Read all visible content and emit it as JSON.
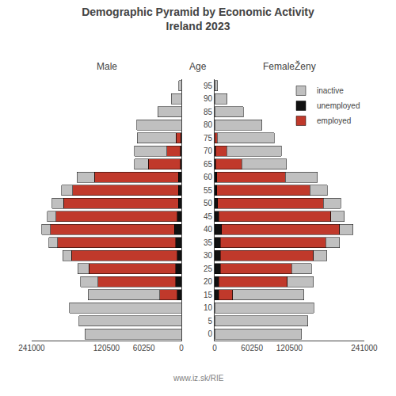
{
  "chart_data": [
    {
      "type": "bar",
      "orientation": "horizontal",
      "stacked": true,
      "title": "Demographic Pyramid by Economic Activity\nIreland 2023",
      "xlabel": "Male",
      "ylabel": "Age",
      "annotations": [
        "www.iz.sk/RIE"
      ],
      "categories": [
        0,
        5,
        10,
        15,
        20,
        25,
        30,
        35,
        40,
        45,
        50,
        55,
        60,
        65,
        70,
        75,
        80,
        85,
        90,
        95
      ],
      "series": [
        {
          "name": "inactive",
          "color": "#c0c0c0",
          "values": [
            155000,
            165000,
            180000,
            115000,
            28000,
            18000,
            14000,
            14000,
            14000,
            14000,
            18000,
            18000,
            28000,
            22000,
            52000,
            62000,
            72000,
            38000,
            16000,
            4000
          ]
        },
        {
          "name": "unemployed",
          "color": "#111111",
          "values": [
            0,
            0,
            0,
            7000,
            9000,
            9000,
            7000,
            9000,
            11000,
            7000,
            5000,
            5000,
            5000,
            1500,
            1500,
            800,
            0,
            0,
            0,
            0
          ]
        },
        {
          "name": "employed",
          "color": "#c0392b",
          "values": [
            0,
            0,
            0,
            28000,
            125000,
            140000,
            170000,
            190000,
            200000,
            195000,
            185000,
            170000,
            135000,
            52000,
            22000,
            8000,
            0,
            0,
            0,
            0
          ]
        }
      ],
      "xlim": [
        241000,
        0
      ],
      "xticks": [
        241000,
        120500,
        60250,
        0
      ],
      "ylim": [
        -2.5,
        97.5
      ],
      "yticks": [
        0,
        5,
        10,
        15,
        20,
        25,
        30,
        35,
        40,
        45,
        50,
        55,
        60,
        65,
        70,
        75,
        80,
        85,
        90,
        95
      ],
      "grid": false,
      "tick_labels": "x"
    },
    {
      "type": "bar",
      "orientation": "horizontal",
      "stacked": true,
      "xlabel": "FemaleŽeny",
      "categories": [
        0,
        5,
        10,
        15,
        20,
        25,
        30,
        35,
        40,
        45,
        50,
        55,
        60,
        65,
        70,
        75,
        80,
        85,
        90,
        95
      ],
      "series": [
        {
          "name": "inactive",
          "color": "#c0c0c0",
          "values": [
            140000,
            150000,
            160000,
            115000,
            42000,
            32000,
            22000,
            22000,
            22000,
            22000,
            28000,
            28000,
            52000,
            72000,
            88000,
            92000,
            76000,
            46000,
            20000,
            5000
          ]
        },
        {
          "name": "unemployed",
          "color": "#111111",
          "values": [
            0,
            0,
            0,
            7000,
            7000,
            9000,
            9000,
            9000,
            11000,
            7000,
            5000,
            3500,
            3500,
            1500,
            1500,
            0,
            0,
            0,
            0,
            0
          ]
        },
        {
          "name": "employed",
          "color": "#c0392b",
          "values": [
            0,
            0,
            0,
            22000,
            110000,
            115000,
            150000,
            170000,
            190000,
            180000,
            170000,
            150000,
            110000,
            42000,
            18000,
            4000,
            0,
            0,
            0,
            0
          ]
        }
      ],
      "xlim": [
        0,
        241000
      ],
      "xticks": [
        0,
        60250,
        120500,
        241000
      ],
      "ylim": [
        -2.5,
        97.5
      ],
      "yticks": [
        0,
        5,
        10,
        15,
        20,
        25,
        30,
        35,
        40,
        45,
        50,
        55,
        60,
        65,
        70,
        75,
        80,
        85,
        90,
        95
      ],
      "grid": false,
      "legend": "upper right"
    }
  ]
}
